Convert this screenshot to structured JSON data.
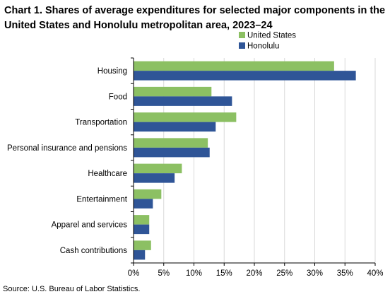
{
  "title": "Chart 1. Shares of average expenditures for selected major components in the United States and Honolulu metropolitan area, 2023–24",
  "source": "Source: U.S. Bureau of Labor Statistics.",
  "chart_data": {
    "type": "bar",
    "orientation": "horizontal",
    "categories": [
      "Housing",
      "Food",
      "Transportation",
      "Personal insurance and pensions",
      "Healthcare",
      "Entertainment",
      "Apparel and services",
      "Cash contributions"
    ],
    "series": [
      {
        "name": "United States",
        "color": "#8cc063",
        "values": [
          33.2,
          12.9,
          17.0,
          12.3,
          8.0,
          4.6,
          2.6,
          2.9
        ]
      },
      {
        "name": "Honolulu",
        "color": "#2f5597",
        "values": [
          36.8,
          16.3,
          13.6,
          12.6,
          6.8,
          3.2,
          2.6,
          1.9
        ]
      }
    ],
    "xlim": [
      0,
      40
    ],
    "xticks": [
      0,
      5,
      10,
      15,
      20,
      25,
      30,
      35,
      40
    ],
    "tick_suffix": "%",
    "grid": true,
    "legend_position": "top-right"
  }
}
